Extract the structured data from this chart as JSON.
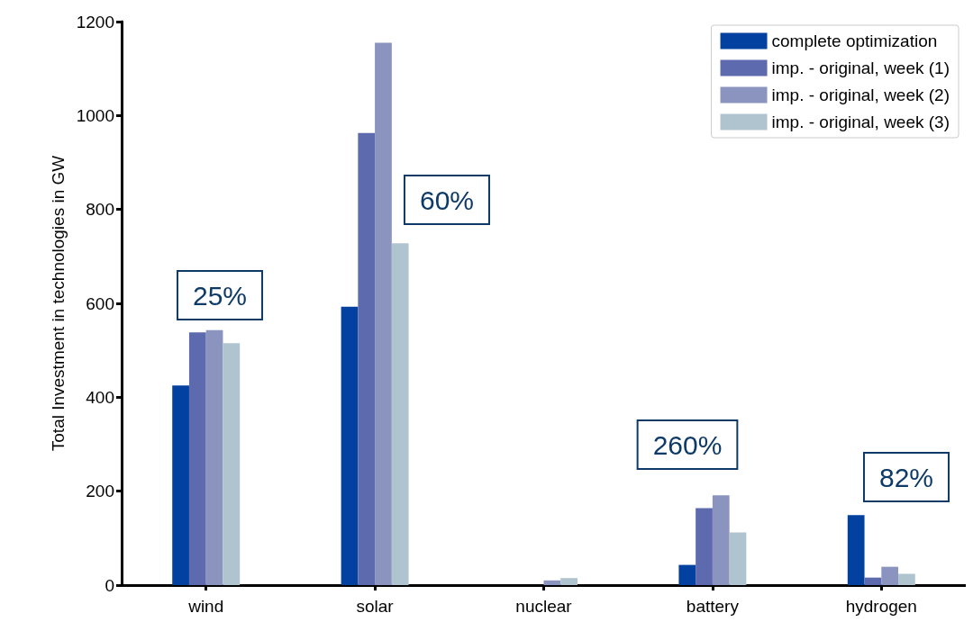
{
  "chart_data": {
    "type": "bar",
    "ylabel": "Total Investment in technologies in GW",
    "categories": [
      "wind",
      "solar",
      "nuclear",
      "battery",
      "hydrogen"
    ],
    "series": [
      {
        "name": "complete optimization",
        "color": "#0341a0",
        "values": [
          425,
          593,
          0,
          43,
          149
        ]
      },
      {
        "name": "imp. - original, week (1)",
        "color": "#5d6aae",
        "values": [
          538,
          963,
          0,
          164,
          16
        ]
      },
      {
        "name": "imp. - original, week (2)",
        "color": "#8a94bf",
        "values": [
          543,
          1155,
          10,
          191,
          39
        ]
      },
      {
        "name": "imp. - original, week (3)",
        "color": "#b0c4cf",
        "values": [
          515,
          728,
          15,
          112,
          24
        ]
      }
    ],
    "ylim": [
      0,
      1200
    ],
    "yticks": [
      0,
      200,
      400,
      600,
      800,
      1000,
      1200
    ],
    "grid": false,
    "legend": "top right",
    "annotations": [
      "25%",
      "60%",
      "260%",
      "82%"
    ]
  }
}
